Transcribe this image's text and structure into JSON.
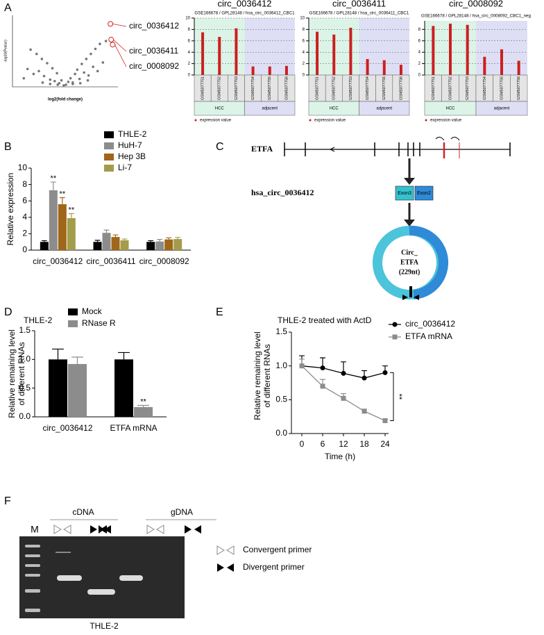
{
  "panel_labels": [
    "A",
    "B",
    "C",
    "D",
    "E",
    "F"
  ],
  "chart_data": [
    {
      "type": "scatter",
      "xlabel": "log2(fold change)",
      "ylabel": "-log10(Pvalue)",
      "xlim": [
        -7,
        7
      ],
      "ylim": [
        0,
        10
      ],
      "color": "#777777",
      "x": [
        -5.5,
        -5,
        -4.6,
        -4.2,
        -3.8,
        -3.5,
        -3.1,
        -2.8,
        -2.4,
        -2,
        -1.7,
        -1.4,
        -1.1,
        -0.8,
        -0.5,
        -0.2,
        0.1,
        0.4,
        0.7,
        1,
        1.3,
        1.6,
        1.9,
        2.2,
        2.5,
        2.8,
        3.1,
        3.4,
        3.7,
        4,
        4.3,
        4.6,
        5,
        5.4,
        -3,
        -2,
        -1,
        1,
        2,
        3
      ],
      "y": [
        1.2,
        2.5,
        5.2,
        1.8,
        4.6,
        2.2,
        3.9,
        1.5,
        3.3,
        1.0,
        2.6,
        0.8,
        1.9,
        0.5,
        0.9,
        0.2,
        0.3,
        0.7,
        1.2,
        0.6,
        1.8,
        2.4,
        1.1,
        3.2,
        2.0,
        3.9,
        1.6,
        4.6,
        2.8,
        5.3,
        2.2,
        6.0,
        3.4,
        6.4,
        0.6,
        0.4,
        0.3,
        0.4,
        0.5,
        0.9
      ],
      "highlight_x": [
        6.0,
        6.1,
        6.3
      ],
      "highlight_y": [
        8.8,
        6.6,
        5.9
      ],
      "highlight_color": "#d62020",
      "annotations": [
        "circ_0036412",
        "circ_0036411",
        "circ_0008092"
      ]
    },
    {
      "type": "bar",
      "title": "circ_0036412",
      "subtitle": "GSE166678 / GPL28148 / hsa_circ_0036412_CBC1",
      "categories": [
        "GSM5077751",
        "GSM5077752",
        "GSM5077753",
        "GSM5077754",
        "GSM5077755",
        "GSM5077756"
      ],
      "values": [
        7.5,
        6.7,
        8.2,
        1.5,
        1.5,
        1.6
      ],
      "color": "#cc1f1f",
      "ylim": [
        0,
        10
      ],
      "yticks": [
        0,
        2,
        4,
        6,
        8,
        10
      ],
      "grid": true,
      "groups": [
        "HCC",
        "adjacent"
      ],
      "legend": "expression value"
    },
    {
      "type": "bar",
      "title": "circ_0036411",
      "subtitle": "GSE166678 / GPL28148 / hsa_circ_0036411_CBC1",
      "categories": [
        "GSM5077751",
        "GSM5077752",
        "GSM5077753",
        "GSM5077754",
        "GSM5077755",
        "GSM5077756"
      ],
      "values": [
        7.6,
        7.1,
        8.3,
        2.8,
        2.6,
        1.8
      ],
      "color": "#cc1f1f",
      "ylim": [
        0,
        10
      ],
      "yticks": [
        0,
        2,
        4,
        6,
        8,
        10
      ],
      "grid": true,
      "groups": [
        "HCC",
        "adjacent"
      ],
      "legend": "expression value"
    },
    {
      "type": "bar",
      "title": "circ_0008092",
      "subtitle": "GSE166678 / GPL28148 / hsa_circ_0008092_CBC1_neg",
      "categories": [
        "GSM5077751",
        "GSM5077752",
        "GSM5077753",
        "GSM5077754",
        "GSM5077755",
        "GSM5077756"
      ],
      "values": [
        8.6,
        9.0,
        8.8,
        3.2,
        4.5,
        2.5
      ],
      "color": "#cc1f1f",
      "ylim": [
        0,
        9.5
      ],
      "yticks": [
        0,
        2,
        4,
        6,
        8
      ],
      "grid": true,
      "groups": [
        "HCC",
        "adjacent"
      ],
      "legend": "expression value"
    },
    {
      "type": "grouped-bar",
      "ylabel": "Relative expression",
      "ylim": [
        0,
        10
      ],
      "yticks": [
        0,
        2,
        4,
        6,
        8,
        10
      ],
      "categories": [
        "circ_0036412",
        "circ_0036411",
        "circ_0008092"
      ],
      "series": [
        {
          "name": "THLE-2",
          "color": "#000000",
          "values": [
            1.0,
            1.0,
            1.0
          ],
          "errors": [
            0.15,
            0.2,
            0.15
          ]
        },
        {
          "name": "HuH-7",
          "color": "#8c8c8c",
          "values": [
            7.3,
            2.1,
            1.05
          ],
          "errors": [
            1.0,
            0.35,
            0.25
          ],
          "significance": [
            "**",
            null,
            null
          ]
        },
        {
          "name": "Hep 3B",
          "color": "#a0661a",
          "values": [
            5.6,
            1.6,
            1.3
          ],
          "errors": [
            0.8,
            0.25,
            0.2
          ],
          "significance": [
            "**",
            null,
            null
          ]
        },
        {
          "name": "Li-7",
          "color": "#a39c4a",
          "values": [
            3.9,
            1.2,
            1.35
          ],
          "errors": [
            0.55,
            0.15,
            0.2
          ],
          "significance": [
            "**",
            null,
            null
          ]
        }
      ]
    },
    {
      "type": "grouped-bar",
      "subtitle": "THLE-2",
      "ylabel": [
        "Relative remaining level",
        "of different RNAs"
      ],
      "ylim": [
        0,
        1.5
      ],
      "yticks": [
        {
          "value": 0,
          "label": "0.0"
        },
        0.5,
        {
          "value": 1,
          "label": "1.0"
        },
        1.5
      ],
      "categories": [
        "circ_0036412",
        "ETFA mRNA"
      ],
      "series": [
        {
          "name": "Mock",
          "color": "#000000",
          "values": [
            1.0,
            1.0
          ],
          "errors": [
            0.18,
            0.12
          ]
        },
        {
          "name": "RNase R",
          "color": "#8c8c8c",
          "values": [
            0.92,
            0.17
          ],
          "errors": [
            0.12,
            0.03
          ],
          "significance": [
            null,
            "**"
          ]
        }
      ]
    },
    {
      "type": "line",
      "title": "THLE-2 treated with ActD",
      "xlabel": "Time (h)",
      "ylabel": [
        "Relative remaining level",
        "of different RNAs"
      ],
      "x": [
        0,
        6,
        12,
        18,
        24
      ],
      "xlim": [
        -3,
        25
      ],
      "xticks": [
        0,
        6,
        12,
        18,
        24
      ],
      "ylim": [
        0,
        1.5
      ],
      "yticks": [
        {
          "value": 0,
          "label": "0.0"
        },
        0.5,
        {
          "value": 1,
          "label": "1.0"
        },
        1.5
      ],
      "series": [
        {
          "name": "circ_0036412",
          "color": "#000000",
          "marker": "circle",
          "values": [
            1.0,
            0.97,
            0.89,
            0.82,
            0.9
          ],
          "errors": [
            0.15,
            0.15,
            0.17,
            0.11,
            0.1
          ]
        },
        {
          "name": "ETFA mRNA",
          "color": "#8c8c8c",
          "marker": "square",
          "values": [
            1.0,
            0.7,
            0.52,
            0.33,
            0.19
          ],
          "errors": [
            0.1,
            0.1,
            0.07,
            0.03,
            0.02
          ]
        }
      ],
      "significance": "**"
    }
  ],
  "diagram": {
    "gene": "ETFA",
    "circ": "hsa_circ_0036412",
    "exons": [
      "Exon3",
      "Exon2"
    ],
    "circle_text": [
      "Circ_",
      "ETFA",
      "(229nt)"
    ]
  },
  "gel": {
    "marker": "M",
    "groups": [
      "cDNA",
      "gDNA"
    ],
    "sample": "THLE-2",
    "legend": [
      "Convergent primer",
      "Divergent primer"
    ]
  }
}
